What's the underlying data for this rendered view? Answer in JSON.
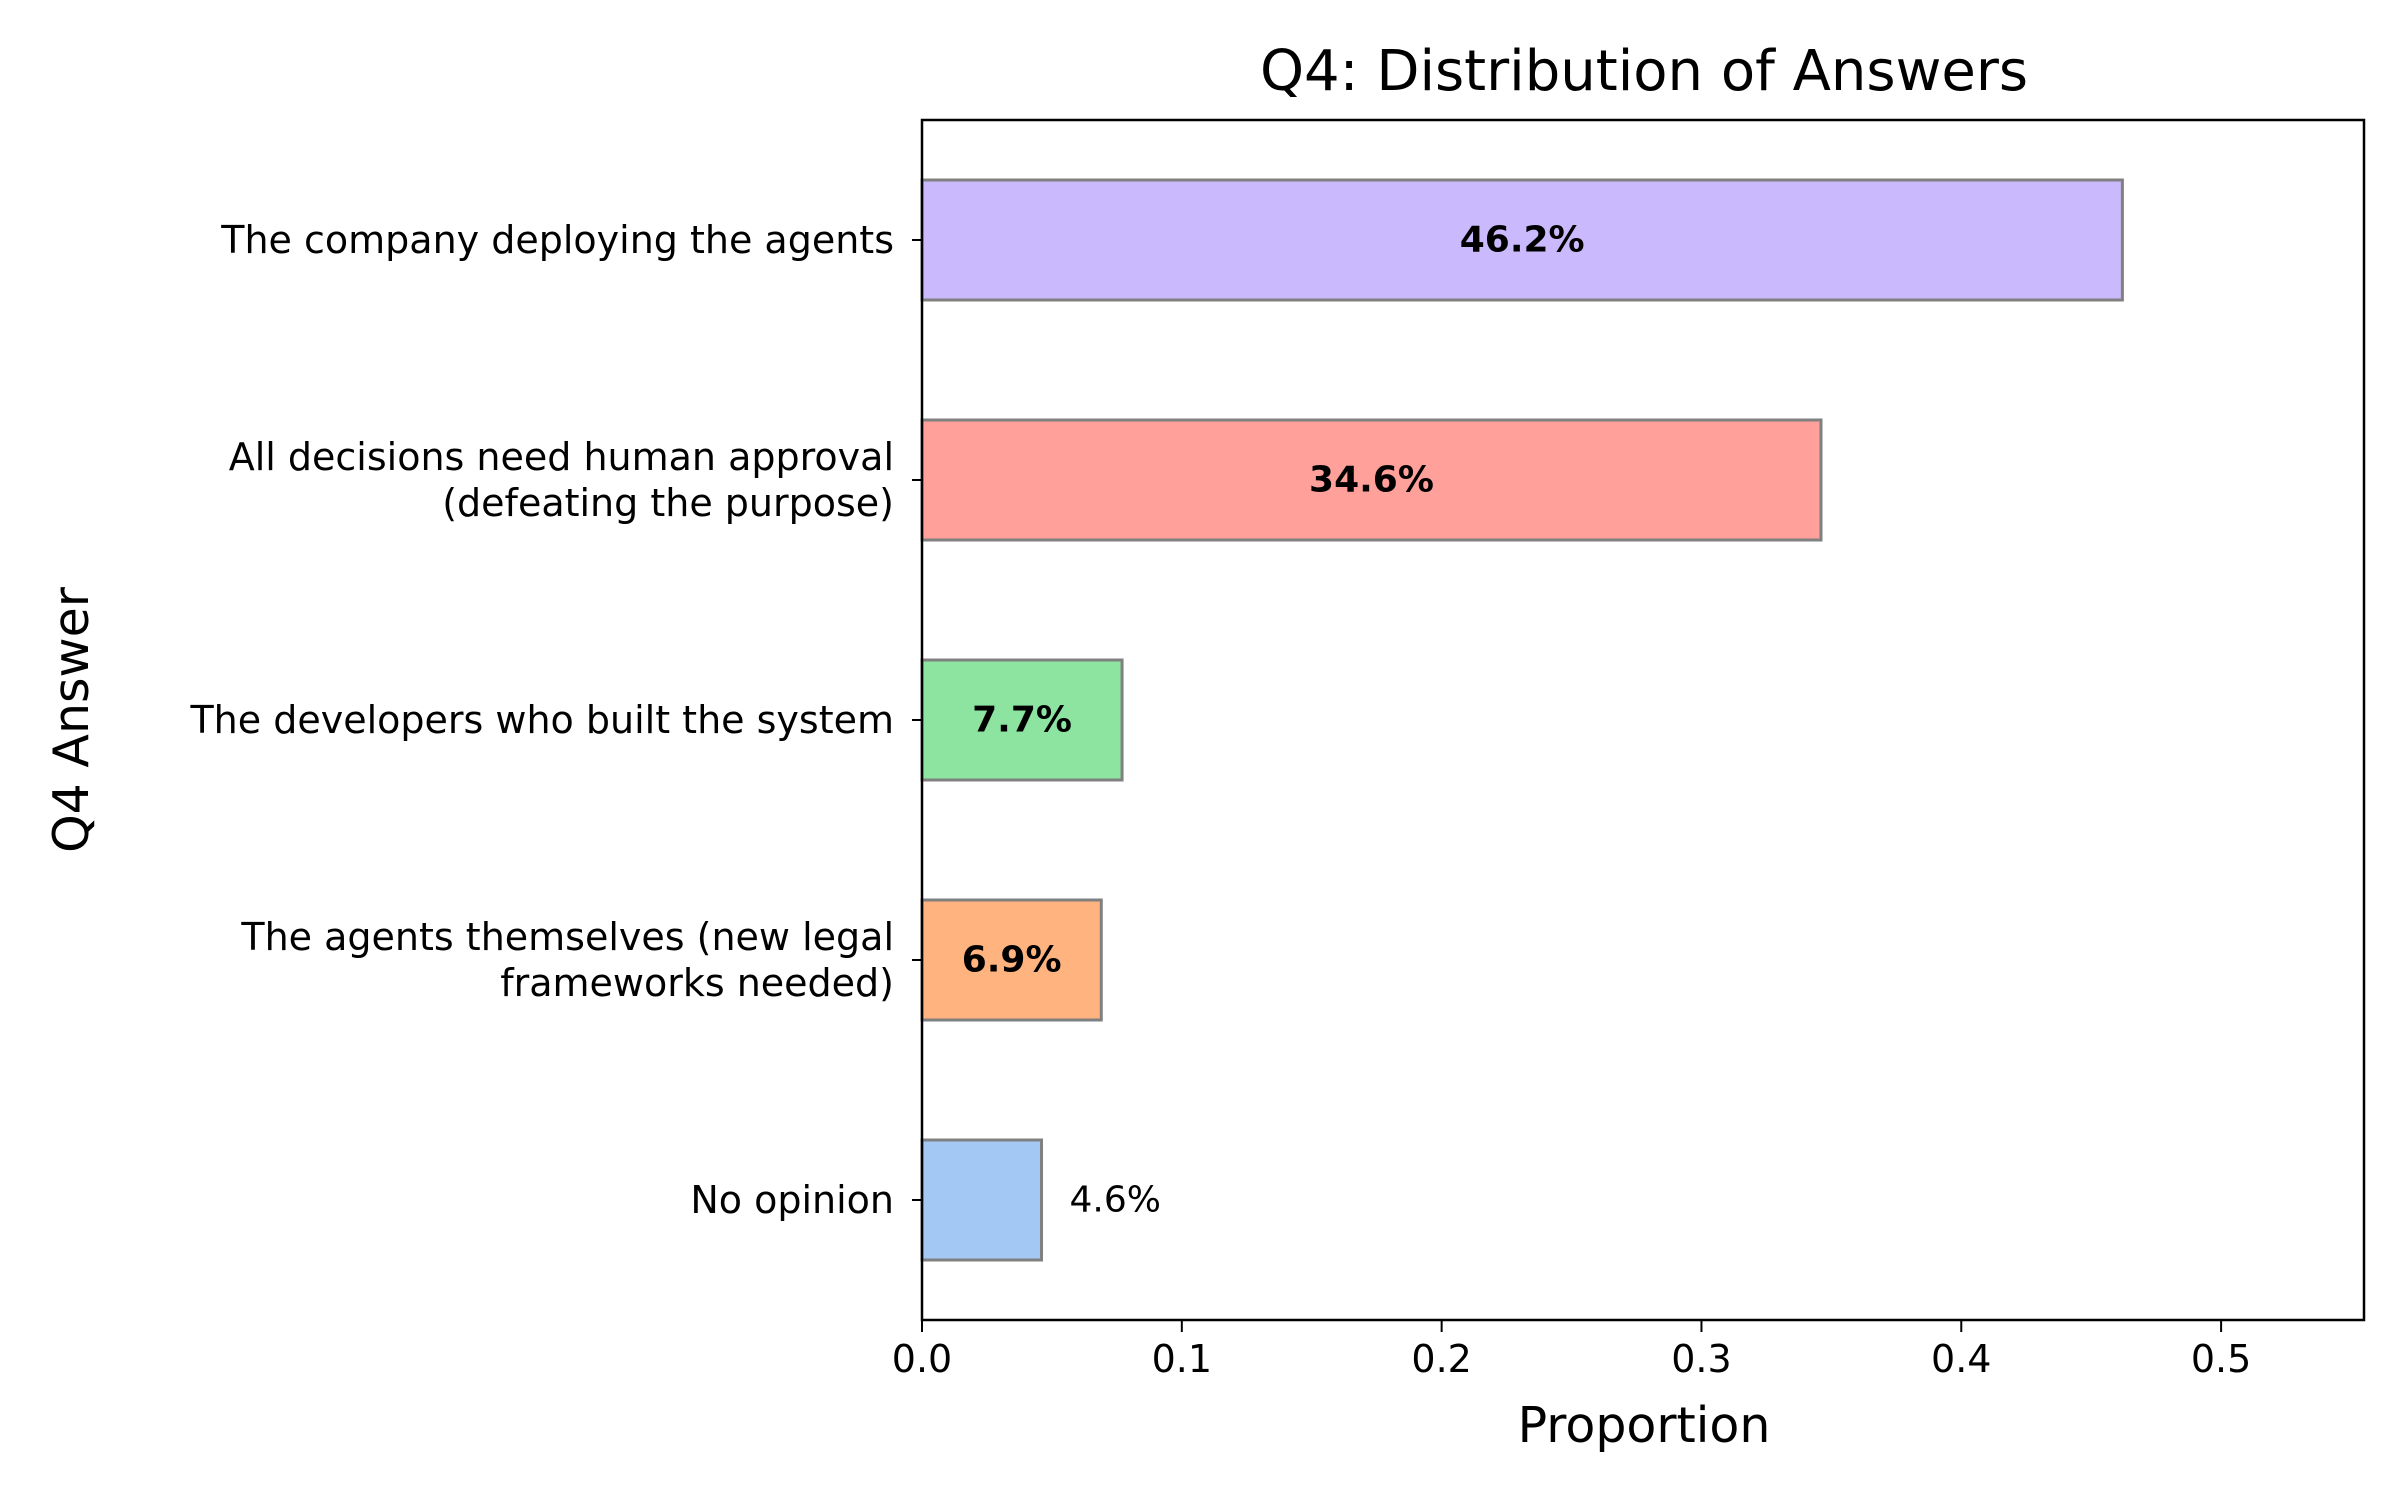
{
  "chart_data": {
    "type": "bar",
    "orientation": "horizontal",
    "title": "Q4: Distribution of Answers",
    "xlabel": "Proportion",
    "ylabel": "Q4 Answer",
    "xlim": [
      0,
      0.555
    ],
    "xticks": [
      0.0,
      0.1,
      0.2,
      0.3,
      0.4,
      0.5
    ],
    "xtick_labels": [
      "0.0",
      "0.1",
      "0.2",
      "0.3",
      "0.4",
      "0.5"
    ],
    "grid": false,
    "bar_edge_color": "#808080",
    "categories": [
      [
        "The company deploying the agents"
      ],
      [
        "All decisions need human approval",
        "(defeating the purpose)"
      ],
      [
        "The developers who built the system"
      ],
      [
        "The agents themselves (new legal",
        "frameworks needed)"
      ],
      [
        "No opinion"
      ]
    ],
    "values": [
      0.462,
      0.346,
      0.077,
      0.069,
      0.046
    ],
    "value_labels": [
      "46.2%",
      "34.6%",
      "7.7%",
      "6.9%",
      "4.6%"
    ],
    "label_inside": [
      true,
      true,
      true,
      true,
      false
    ],
    "colors": [
      "#cbb9fd",
      "#ffa09a",
      "#8de3a0",
      "#ffb37f",
      "#a3c8f4"
    ]
  }
}
